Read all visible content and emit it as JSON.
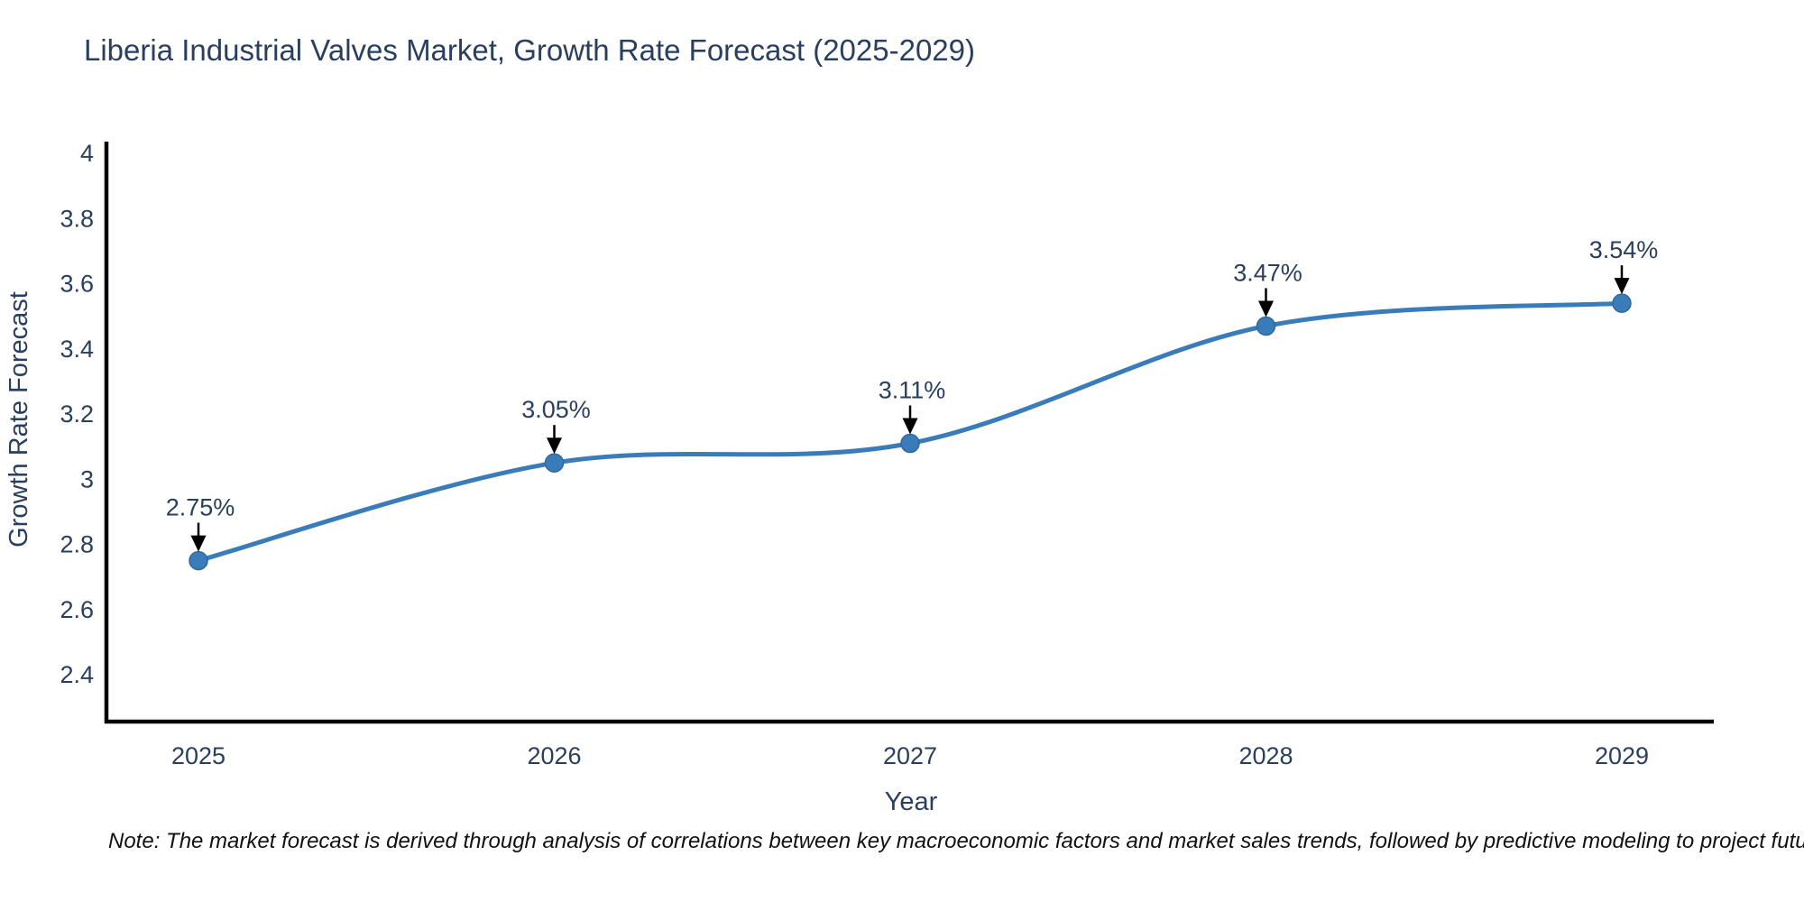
{
  "title": "Liberia Industrial Valves Market, Growth Rate Forecast (2025-2029)",
  "note": "Note: The market forecast is derived through analysis of correlations between key macroeconomic factors and market sales trends, followed by predictive modeling to project future sales",
  "colors": {
    "line": "#3a7cba",
    "marker_fill": "#3a7cba",
    "marker_edge": "#31689c",
    "arrow": "#000000",
    "axis_line": "#000000",
    "text": "#2a3f5f",
    "note_text": "#111111",
    "background": "#ffffff"
  },
  "chart_data": {
    "type": "line",
    "title": "Liberia Industrial Valves Market, Growth Rate Forecast (2025-2029)",
    "x": [
      2025,
      2026,
      2027,
      2028,
      2029
    ],
    "x_tick_labels": [
      "2025",
      "2026",
      "2027",
      "2028",
      "2029"
    ],
    "series": [
      {
        "name": "Growth Rate Forecast",
        "values": [
          2.75,
          3.05,
          3.11,
          3.47,
          3.54
        ],
        "point_labels": [
          "2.75%",
          "3.05%",
          "3.11%",
          "3.47%",
          "3.54%"
        ]
      }
    ],
    "xlabel": "Year",
    "ylabel": "Growth Rate Forecast",
    "yticks": [
      2.4,
      2.6,
      2.8,
      3,
      3.2,
      3.4,
      3.6,
      3.8,
      4
    ],
    "ytick_labels": [
      "2.4",
      "2.6",
      "2.8",
      "3",
      "3.2",
      "3.4",
      "3.6",
      "3.8",
      "4"
    ],
    "ylim": [
      2.26,
      4.04
    ],
    "grid": false,
    "legend_position": "none",
    "line_shape": "spline",
    "annotation_style": "arrow-down-to-point"
  }
}
